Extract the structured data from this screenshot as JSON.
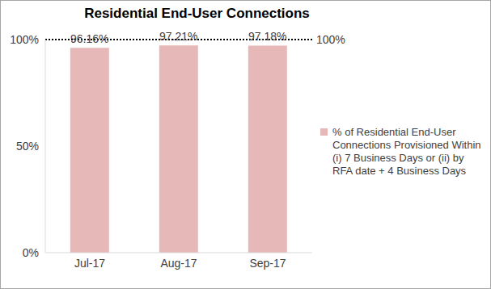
{
  "chart_data": {
    "type": "bar",
    "title": "Residential End-User Connections",
    "categories": [
      "Jul-17",
      "Aug-17",
      "Sep-17"
    ],
    "series": [
      {
        "name": "% of Residential End-User Connections Provisioned Within (i) 7 Business Days or (ii) by RFA date + 4 Business Days",
        "color": "#e6b8b7",
        "values": [
          96.16,
          97.21,
          97.18
        ],
        "value_labels": [
          "96.16%",
          "97.21%",
          "97.18%"
        ]
      }
    ],
    "ylim": [
      0,
      100
    ],
    "yticks": [
      {
        "value": 0,
        "label": "0%"
      },
      {
        "value": 50,
        "label": "50%"
      },
      {
        "value": 100,
        "label": "100%"
      }
    ],
    "data_labels": true,
    "legend": "right",
    "grid": false,
    "annotations": [
      {
        "y": 100,
        "label": "100%",
        "line_style": "dotted"
      }
    ]
  }
}
